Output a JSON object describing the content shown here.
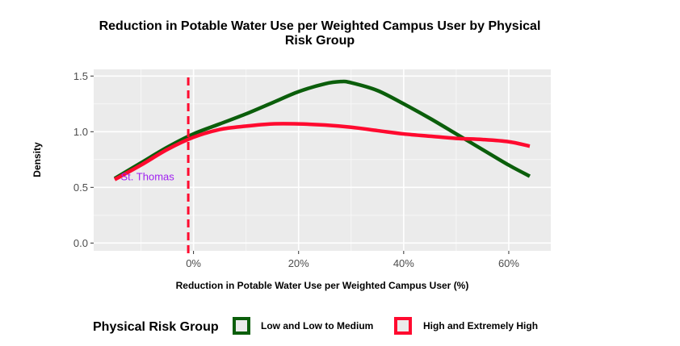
{
  "chart_data": {
    "type": "line",
    "title_line1": "Reduction in Potable Water Use per Weighted Campus User by Physical",
    "title_line2": "Risk Group",
    "xlabel": "Reduction in Potable Water Use per Weighted Campus User (%)",
    "ylabel": "Density",
    "xlim": [
      -0.19,
      0.68
    ],
    "ylim": [
      -0.07,
      1.56
    ],
    "x_ticks": [
      0,
      0.2,
      0.4,
      0.6
    ],
    "x_tick_labels": [
      "0%",
      "20%",
      "40%",
      "60%"
    ],
    "y_ticks": [
      0.0,
      0.5,
      1.0,
      1.5
    ],
    "y_tick_labels": [
      "0.0",
      "0.5",
      "1.0",
      "1.5"
    ],
    "grid": true,
    "legend_position": "bottom",
    "legend_title": "Physical Risk Group",
    "series": [
      {
        "name": "Low and Low to Medium",
        "color": "#0b5e0b",
        "x": [
          -0.15,
          -0.1,
          -0.05,
          0.0,
          0.05,
          0.1,
          0.15,
          0.2,
          0.25,
          0.28,
          0.3,
          0.35,
          0.4,
          0.45,
          0.5,
          0.55,
          0.6,
          0.64
        ],
        "y": [
          0.58,
          0.72,
          0.86,
          0.98,
          1.07,
          1.16,
          1.26,
          1.36,
          1.43,
          1.45,
          1.44,
          1.37,
          1.25,
          1.12,
          0.98,
          0.84,
          0.7,
          0.6
        ]
      },
      {
        "name": "High and Extremely High",
        "color": "#ff0a2f",
        "x": [
          -0.15,
          -0.1,
          -0.05,
          0.0,
          0.05,
          0.1,
          0.15,
          0.2,
          0.25,
          0.3,
          0.35,
          0.4,
          0.45,
          0.5,
          0.55,
          0.6,
          0.64
        ],
        "y": [
          0.57,
          0.7,
          0.84,
          0.95,
          1.02,
          1.05,
          1.07,
          1.07,
          1.06,
          1.04,
          1.01,
          0.98,
          0.96,
          0.94,
          0.93,
          0.91,
          0.87
        ]
      }
    ],
    "reference_line": {
      "x": -0.01,
      "color": "#ff0a2f",
      "style": "dashed"
    },
    "annotation": {
      "text": "St. Thomas",
      "x": -0.14,
      "y": 0.57,
      "color": "#a020f0"
    }
  }
}
